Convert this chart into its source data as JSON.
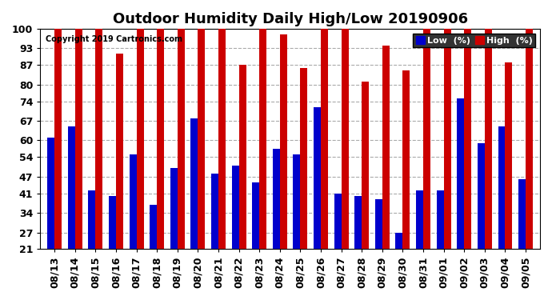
{
  "title": "Outdoor Humidity Daily High/Low 20190906",
  "copyright": "Copyright 2019 Cartronics.com",
  "dates": [
    "08/13",
    "08/14",
    "08/15",
    "08/16",
    "08/17",
    "08/18",
    "08/19",
    "08/20",
    "08/21",
    "08/22",
    "08/23",
    "08/24",
    "08/25",
    "08/26",
    "08/27",
    "08/28",
    "08/29",
    "08/30",
    "08/31",
    "09/01",
    "09/02",
    "09/03",
    "09/04",
    "09/05"
  ],
  "high": [
    100,
    100,
    100,
    91,
    100,
    100,
    100,
    100,
    100,
    87,
    100,
    98,
    86,
    100,
    100,
    81,
    94,
    85,
    100,
    100,
    100,
    100,
    88,
    100
  ],
  "low": [
    61,
    65,
    42,
    40,
    55,
    37,
    50,
    68,
    48,
    51,
    45,
    57,
    55,
    72,
    41,
    40,
    39,
    27,
    42,
    42,
    75,
    59,
    65,
    46
  ],
  "bar_color_low": "#0000cc",
  "bar_color_high": "#cc0000",
  "background_color": "#ffffff",
  "ylim_min": 21,
  "ylim_max": 100,
  "yticks": [
    21,
    27,
    34,
    41,
    47,
    54,
    60,
    67,
    74,
    80,
    87,
    93,
    100
  ],
  "grid_color": "#aaaaaa",
  "title_fontsize": 13,
  "tick_fontsize": 9,
  "legend_low_label": "Low  (%)",
  "legend_high_label": "High  (%)"
}
